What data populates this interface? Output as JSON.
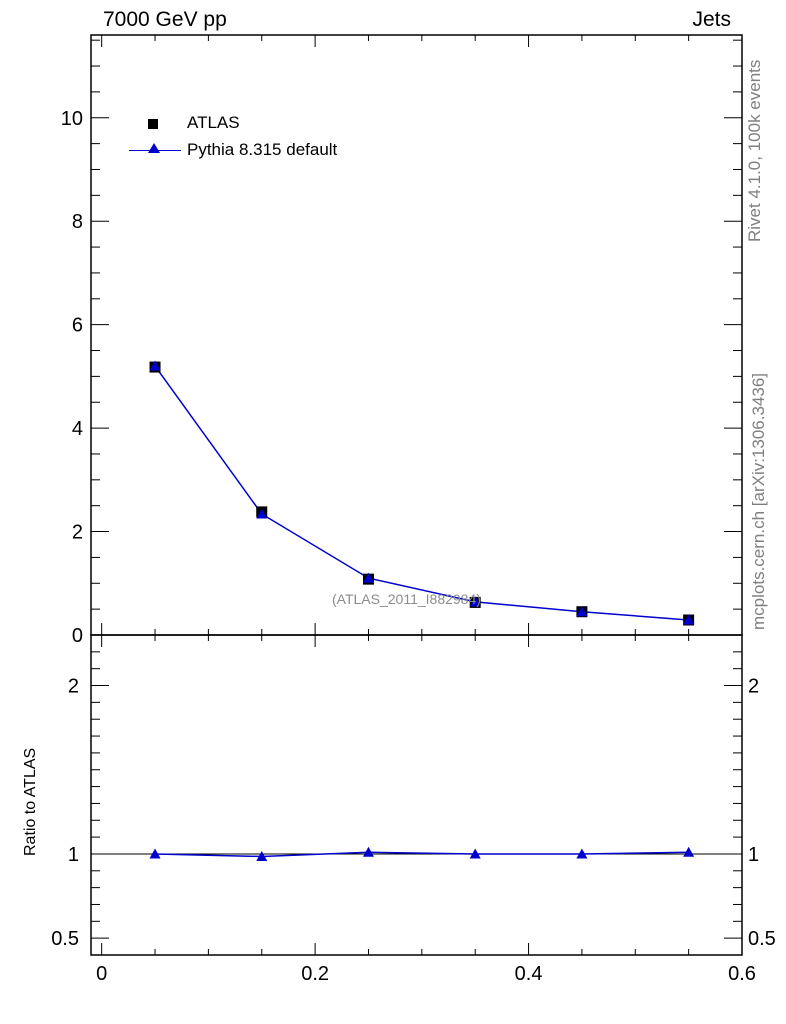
{
  "header": {
    "left": "7000 GeV pp",
    "right": "Jets"
  },
  "side_labels": {
    "rivet": "Rivet 4.1.0,  100k events",
    "mcplots": "mcplots.cern.ch [arXiv:1306.3436]"
  },
  "watermark": "(ATLAS_2011_I882984)",
  "colors": {
    "data": "#000000",
    "mc": "#0000cc",
    "text_grey": "#7f7f7f"
  },
  "chart_data": [
    {
      "type": "scatter",
      "panel": "main",
      "x": [
        0.05,
        0.15,
        0.25,
        0.35,
        0.45,
        0.55
      ],
      "xlim": [
        -0.01,
        0.6
      ],
      "ylim": [
        0,
        11.6
      ],
      "yticks": [
        0,
        2,
        4,
        6,
        8,
        10
      ],
      "ytick_labels": [
        "0",
        "2",
        "4",
        "6",
        "8",
        "10"
      ],
      "legend": {
        "placement": "top-left",
        "entries": [
          "ATLAS",
          "Pythia 8.315 default"
        ]
      },
      "series": [
        {
          "name": "ATLAS",
          "marker": "square",
          "values": [
            5.18,
            2.38,
            1.08,
            0.63,
            0.45,
            0.29
          ]
        },
        {
          "name": "Pythia 8.315 default",
          "marker": "triangle",
          "line": true,
          "values": [
            5.2,
            2.34,
            1.1,
            0.64,
            0.45,
            0.29
          ]
        }
      ]
    },
    {
      "type": "line",
      "panel": "ratio",
      "ylabel": "Ratio to ATLAS",
      "x": [
        0.05,
        0.15,
        0.25,
        0.35,
        0.45,
        0.55
      ],
      "xlim": [
        -0.01,
        0.6
      ],
      "ylim": [
        0.4,
        2.3
      ],
      "yticks": [
        0.5,
        1,
        2
      ],
      "ytick_labels": [
        "0.5",
        "1",
        "2"
      ],
      "xticks": [
        0,
        0.2,
        0.4,
        0.6
      ],
      "xtick_labels": [
        "0",
        "0.2",
        "0.4",
        "0.6"
      ],
      "reference": 1,
      "series": [
        {
          "name": "Pythia 8.315 default",
          "values": [
            1.0,
            0.985,
            1.01,
            1.0,
            1.0,
            1.01
          ]
        }
      ]
    }
  ]
}
